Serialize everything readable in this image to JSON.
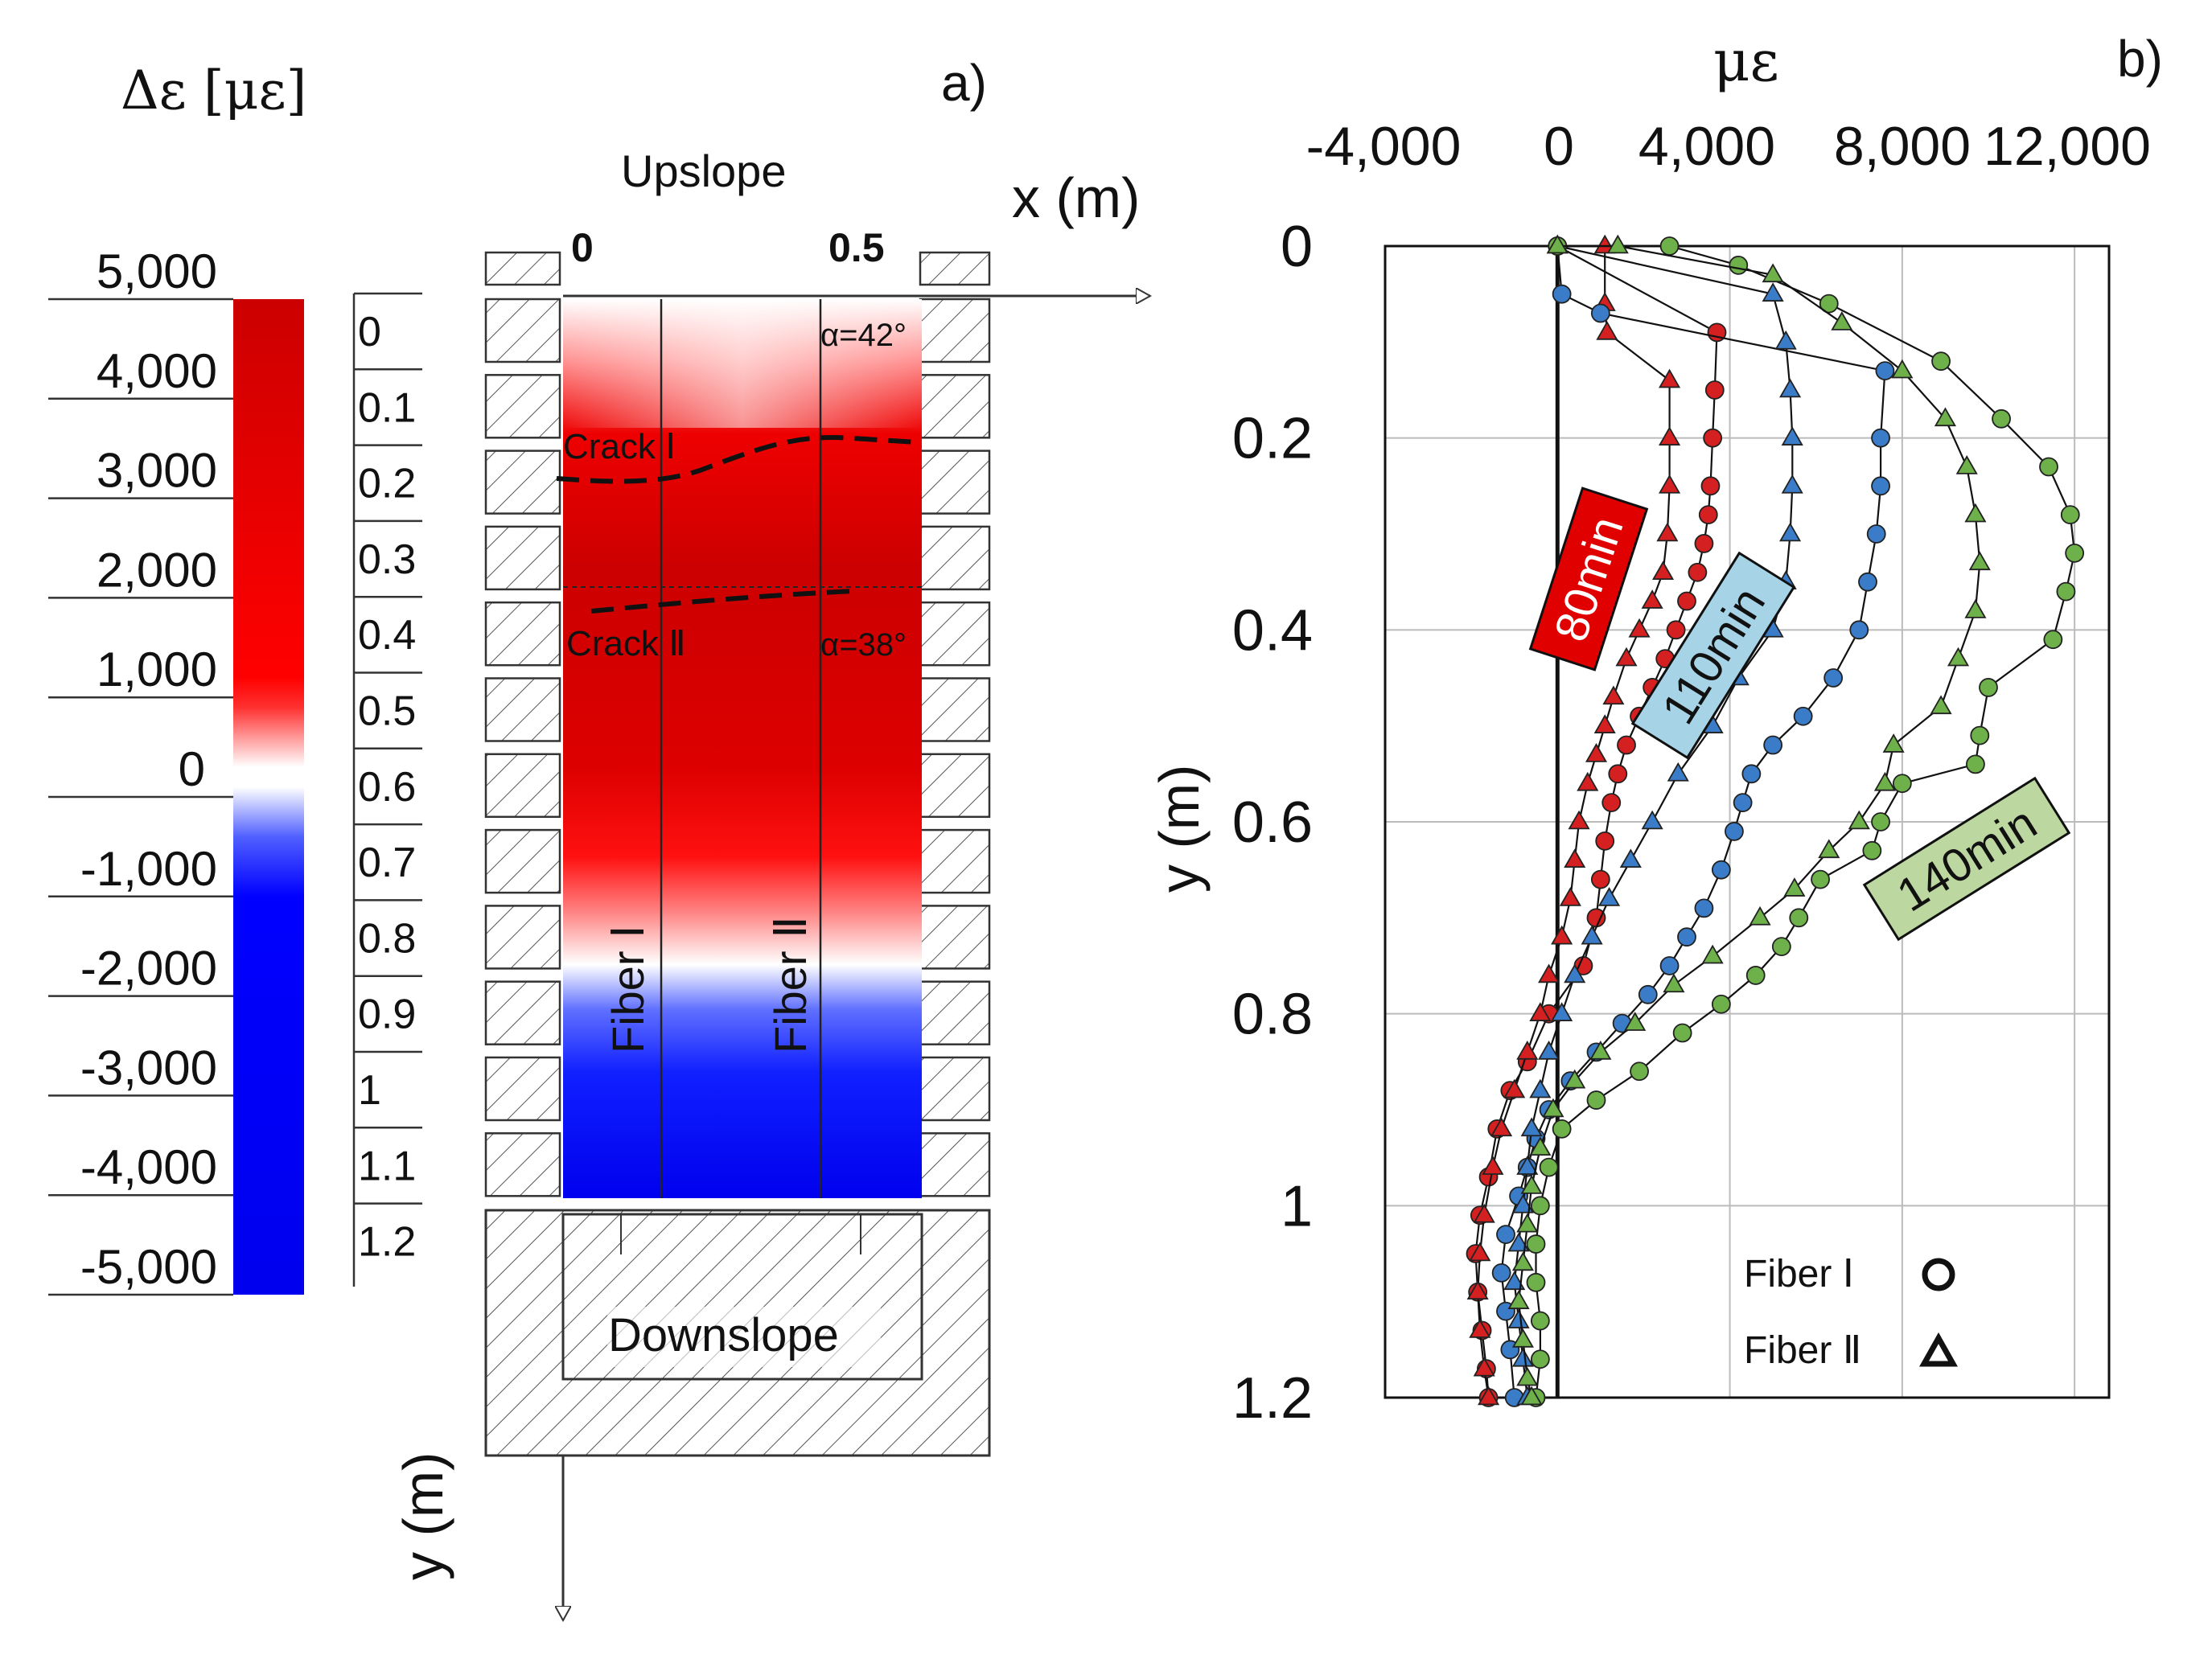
{
  "panel_a": {
    "label": "a)",
    "colorbar": {
      "title": "Δε [με]",
      "ticks": [
        "5,000",
        "4,000",
        "3,000",
        "2,000",
        "1,000",
        "0",
        "-1,000",
        "-2,000",
        "-3,000",
        "-4,000",
        "-5,000"
      ],
      "colors": {
        "max": "#d40000",
        "mid": "#ffffff",
        "min": "#0000ee"
      }
    },
    "depth_scale": [
      "0",
      "0.1",
      "0.2",
      "0.3",
      "0.4",
      "0.5",
      "0.6",
      "0.7",
      "0.8",
      "0.9",
      "1",
      "1.1",
      "1.2"
    ],
    "upslope": "Upslope",
    "downslope": "Downslope",
    "x_axis_label": "x (m)",
    "x_ticks": [
      "0",
      "0.5"
    ],
    "y_axis_label": "y (m)",
    "crack1": "Crack Ⅰ",
    "crack2": "Crack Ⅱ",
    "alpha1": "α=42°",
    "alpha2": "α=38°",
    "fiber1": "Fiber Ⅰ",
    "fiber2": "Fiber Ⅱ"
  },
  "panel_b": {
    "label": "b)",
    "legend": [
      {
        "label": "Fiber Ⅰ",
        "marker": "circle"
      },
      {
        "label": "Fiber Ⅱ",
        "marker": "triangle"
      }
    ],
    "boxes": [
      {
        "text": "80min",
        "color": "#e00000",
        "text_color": "#ffffff"
      },
      {
        "text": "110min",
        "color": "#a6d4e6",
        "text_color": "#111111"
      },
      {
        "text": "140min",
        "color": "#bcd7a0",
        "text_color": "#111111"
      }
    ]
  },
  "chart_data": {
    "type": "scatter",
    "title": "",
    "xlabel": "με",
    "ylabel": "y (m)",
    "x_ticks": [
      "-4,000",
      "0",
      "4,000",
      "8,000",
      "12,000"
    ],
    "y_ticks": [
      "0",
      "0.2",
      "0.4",
      "0.6",
      "0.8",
      "1",
      "1.2"
    ],
    "xlim": [
      -4000,
      12800
    ],
    "ylim": [
      1.2,
      0
    ],
    "x_axis_position": "top",
    "grid": true,
    "legend_position": "bottom-right",
    "series": [
      {
        "color": "#d42020",
        "marker": "circle",
        "points": [
          [
            0,
            0
          ],
          [
            3700,
            0.09
          ],
          [
            3650,
            0.15
          ],
          [
            3600,
            0.2
          ],
          [
            3550,
            0.25
          ],
          [
            3500,
            0.28
          ],
          [
            3400,
            0.31
          ],
          [
            3250,
            0.34
          ],
          [
            3000,
            0.37
          ],
          [
            2750,
            0.4
          ],
          [
            2500,
            0.43
          ],
          [
            2200,
            0.46
          ],
          [
            1900,
            0.49
          ],
          [
            1600,
            0.52
          ],
          [
            1400,
            0.55
          ],
          [
            1250,
            0.58
          ],
          [
            1100,
            0.62
          ],
          [
            1000,
            0.66
          ],
          [
            900,
            0.7
          ],
          [
            600,
            0.75
          ],
          [
            -200,
            0.8
          ],
          [
            -700,
            0.85
          ],
          [
            -1100,
            0.88
          ],
          [
            -1400,
            0.92
          ],
          [
            -1600,
            0.97
          ],
          [
            -1800,
            1.01
          ],
          [
            -1900,
            1.05
          ],
          [
            -1850,
            1.09
          ],
          [
            -1750,
            1.13
          ],
          [
            -1650,
            1.17
          ],
          [
            -1600,
            1.2
          ]
        ]
      },
      {
        "color": "#d42020",
        "marker": "triangle",
        "points": [
          [
            1100,
            0
          ],
          [
            1100,
            0.06
          ],
          [
            1150,
            0.09
          ],
          [
            2600,
            0.14
          ],
          [
            2600,
            0.2
          ],
          [
            2600,
            0.25
          ],
          [
            2550,
            0.3
          ],
          [
            2450,
            0.34
          ],
          [
            2200,
            0.37
          ],
          [
            1900,
            0.4
          ],
          [
            1600,
            0.43
          ],
          [
            1300,
            0.47
          ],
          [
            1100,
            0.5
          ],
          [
            900,
            0.53
          ],
          [
            700,
            0.56
          ],
          [
            500,
            0.6
          ],
          [
            400,
            0.64
          ],
          [
            300,
            0.68
          ],
          [
            100,
            0.72
          ],
          [
            -200,
            0.76
          ],
          [
            -400,
            0.8
          ],
          [
            -700,
            0.84
          ],
          [
            -1000,
            0.88
          ],
          [
            -1300,
            0.92
          ],
          [
            -1500,
            0.96
          ],
          [
            -1700,
            1.01
          ],
          [
            -1800,
            1.05
          ],
          [
            -1850,
            1.09
          ],
          [
            -1800,
            1.13
          ],
          [
            -1700,
            1.17
          ],
          [
            -1600,
            1.2
          ]
        ]
      },
      {
        "color": "#3a7cc8",
        "marker": "circle",
        "points": [
          [
            0,
            0
          ],
          [
            100,
            0.05
          ],
          [
            1000,
            0.07
          ],
          [
            7600,
            0.13
          ],
          [
            7500,
            0.2
          ],
          [
            7500,
            0.25
          ],
          [
            7400,
            0.3
          ],
          [
            7200,
            0.35
          ],
          [
            7000,
            0.4
          ],
          [
            6400,
            0.45
          ],
          [
            5700,
            0.49
          ],
          [
            5000,
            0.52
          ],
          [
            4500,
            0.55
          ],
          [
            4300,
            0.58
          ],
          [
            4100,
            0.61
          ],
          [
            3800,
            0.65
          ],
          [
            3400,
            0.69
          ],
          [
            3000,
            0.72
          ],
          [
            2600,
            0.75
          ],
          [
            2100,
            0.78
          ],
          [
            1500,
            0.81
          ],
          [
            900,
            0.84
          ],
          [
            300,
            0.87
          ],
          [
            -200,
            0.9
          ],
          [
            -500,
            0.93
          ],
          [
            -700,
            0.96
          ],
          [
            -900,
            0.99
          ],
          [
            -1200,
            1.03
          ],
          [
            -1300,
            1.07
          ],
          [
            -1200,
            1.11
          ],
          [
            -1100,
            1.15
          ],
          [
            -1000,
            1.2
          ]
        ]
      },
      {
        "color": "#3a7cc8",
        "marker": "triangle",
        "points": [
          [
            0,
            0
          ],
          [
            5000,
            0.05
          ],
          [
            5300,
            0.1
          ],
          [
            5400,
            0.15
          ],
          [
            5450,
            0.2
          ],
          [
            5450,
            0.25
          ],
          [
            5400,
            0.3
          ],
          [
            5300,
            0.35
          ],
          [
            5000,
            0.4
          ],
          [
            4200,
            0.45
          ],
          [
            3600,
            0.5
          ],
          [
            2800,
            0.55
          ],
          [
            2200,
            0.6
          ],
          [
            1700,
            0.64
          ],
          [
            1200,
            0.68
          ],
          [
            800,
            0.72
          ],
          [
            400,
            0.76
          ],
          [
            100,
            0.8
          ],
          [
            -200,
            0.84
          ],
          [
            -400,
            0.88
          ],
          [
            -600,
            0.92
          ],
          [
            -700,
            0.96
          ],
          [
            -800,
            1.0
          ],
          [
            -900,
            1.04
          ],
          [
            -1000,
            1.08
          ],
          [
            -900,
            1.12
          ],
          [
            -800,
            1.16
          ],
          [
            -700,
            1.2
          ]
        ]
      },
      {
        "color": "#6eb049",
        "marker": "circle",
        "points": [
          [
            0,
            0
          ],
          [
            2600,
            0.0
          ],
          [
            4200,
            0.02
          ],
          [
            6300,
            0.06
          ],
          [
            8900,
            0.12
          ],
          [
            10300,
            0.18
          ],
          [
            11400,
            0.23
          ],
          [
            11900,
            0.28
          ],
          [
            12000,
            0.32
          ],
          [
            11800,
            0.36
          ],
          [
            11500,
            0.41
          ],
          [
            10000,
            0.46
          ],
          [
            9800,
            0.51
          ],
          [
            9700,
            0.54
          ],
          [
            8000,
            0.56
          ],
          [
            7500,
            0.6
          ],
          [
            7300,
            0.63
          ],
          [
            6100,
            0.66
          ],
          [
            5600,
            0.7
          ],
          [
            5200,
            0.73
          ],
          [
            4600,
            0.76
          ],
          [
            3800,
            0.79
          ],
          [
            2900,
            0.82
          ],
          [
            1900,
            0.86
          ],
          [
            900,
            0.89
          ],
          [
            100,
            0.92
          ],
          [
            -200,
            0.96
          ],
          [
            -400,
            1.0
          ],
          [
            -500,
            1.04
          ],
          [
            -500,
            1.08
          ],
          [
            -400,
            1.12
          ],
          [
            -400,
            1.16
          ],
          [
            -500,
            1.2
          ]
        ]
      },
      {
        "color": "#6eb049",
        "marker": "triangle",
        "points": [
          [
            0,
            0
          ],
          [
            1400,
            0.0
          ],
          [
            5000,
            0.03
          ],
          [
            6600,
            0.08
          ],
          [
            8000,
            0.13
          ],
          [
            9000,
            0.18
          ],
          [
            9500,
            0.23
          ],
          [
            9700,
            0.28
          ],
          [
            9800,
            0.33
          ],
          [
            9700,
            0.38
          ],
          [
            9300,
            0.43
          ],
          [
            8900,
            0.48
          ],
          [
            7800,
            0.52
          ],
          [
            7600,
            0.56
          ],
          [
            7000,
            0.6
          ],
          [
            6300,
            0.63
          ],
          [
            5500,
            0.67
          ],
          [
            4700,
            0.7
          ],
          [
            3600,
            0.74
          ],
          [
            2700,
            0.77
          ],
          [
            1800,
            0.81
          ],
          [
            1000,
            0.84
          ],
          [
            400,
            0.87
          ],
          [
            -100,
            0.9
          ],
          [
            -400,
            0.94
          ],
          [
            -600,
            0.98
          ],
          [
            -700,
            1.02
          ],
          [
            -800,
            1.06
          ],
          [
            -900,
            1.1
          ],
          [
            -800,
            1.14
          ],
          [
            -700,
            1.18
          ],
          [
            -600,
            1.2
          ]
        ]
      }
    ]
  }
}
